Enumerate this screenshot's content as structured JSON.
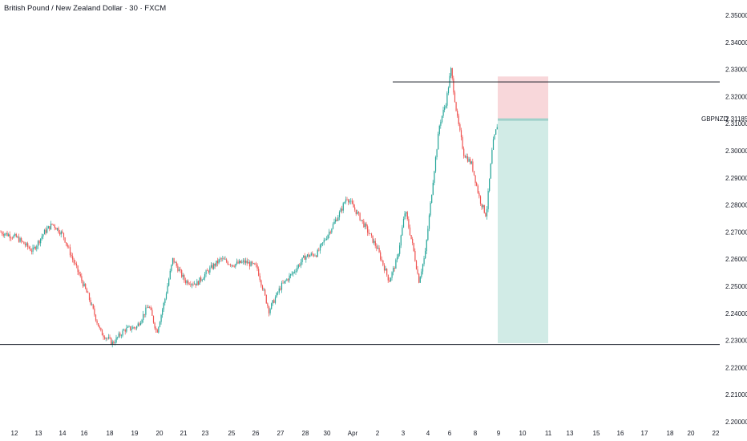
{
  "header": {
    "title": "British Pound / New Zealand Dollar · 30 · FXCM"
  },
  "price_tag": {
    "symbol": "GBPNZD",
    "value": "2.31185"
  },
  "chart_data": {
    "type": "candlestick",
    "title": "British Pound / New Zealand Dollar · 30 · FXCM",
    "y_ticks": [
      "2.35000",
      "2.34000",
      "2.33000",
      "2.32000",
      "2.31000",
      "2.30000",
      "2.29000",
      "2.28000",
      "2.27000",
      "2.26000",
      "2.25000",
      "2.24000",
      "2.23000",
      "2.22000",
      "2.21000",
      "2.20000"
    ],
    "ylim": [
      2.2,
      2.35
    ],
    "x_ticks": [
      "12",
      "13",
      "14",
      "16",
      "18",
      "19",
      "20",
      "21",
      "23",
      "25",
      "26",
      "27",
      "28",
      "30",
      "Apr",
      "2",
      "3",
      "4",
      "6",
      "8",
      "9",
      "10",
      "11",
      "13",
      "15",
      "16",
      "17",
      "18",
      "20",
      "22"
    ],
    "price_path": [
      [
        0,
        2.27
      ],
      [
        20,
        2.268
      ],
      [
        40,
        2.263
      ],
      [
        55,
        2.27
      ],
      [
        65,
        2.273
      ],
      [
        78,
        2.269
      ],
      [
        90,
        2.26
      ],
      [
        110,
        2.246
      ],
      [
        125,
        2.233
      ],
      [
        140,
        2.229
      ],
      [
        155,
        2.234
      ],
      [
        170,
        2.235
      ],
      [
        185,
        2.243
      ],
      [
        195,
        2.233
      ],
      [
        205,
        2.245
      ],
      [
        215,
        2.26
      ],
      [
        230,
        2.252
      ],
      [
        245,
        2.251
      ],
      [
        260,
        2.256
      ],
      [
        275,
        2.26
      ],
      [
        290,
        2.258
      ],
      [
        305,
        2.259
      ],
      [
        320,
        2.257
      ],
      [
        335,
        2.241
      ],
      [
        350,
        2.25
      ],
      [
        365,
        2.255
      ],
      [
        380,
        2.261
      ],
      [
        395,
        2.262
      ],
      [
        410,
        2.27
      ],
      [
        425,
        2.278
      ],
      [
        432,
        2.283
      ],
      [
        445,
        2.277
      ],
      [
        455,
        2.272
      ],
      [
        470,
        2.264
      ],
      [
        485,
        2.252
      ],
      [
        495,
        2.26
      ],
      [
        505,
        2.278
      ],
      [
        515,
        2.264
      ],
      [
        522,
        2.252
      ],
      [
        530,
        2.262
      ],
      [
        540,
        2.29
      ],
      [
        548,
        2.31
      ],
      [
        556,
        2.318
      ],
      [
        562,
        2.33
      ],
      [
        570,
        2.312
      ],
      [
        578,
        2.299
      ],
      [
        588,
        2.295
      ],
      [
        598,
        2.282
      ],
      [
        606,
        2.276
      ],
      [
        614,
        2.302
      ],
      [
        621,
        2.311
      ]
    ],
    "annotations": {
      "resistance_level": 2.3254,
      "support_level": 2.2285,
      "short_position": {
        "entry": 2.3115,
        "stop": 2.3274,
        "target": 2.229
      }
    },
    "colors": {
      "up": "#26a69a",
      "down": "#ef5350",
      "stop_zone": "#f8d7da",
      "target_zone": "#d1ebe6"
    }
  }
}
